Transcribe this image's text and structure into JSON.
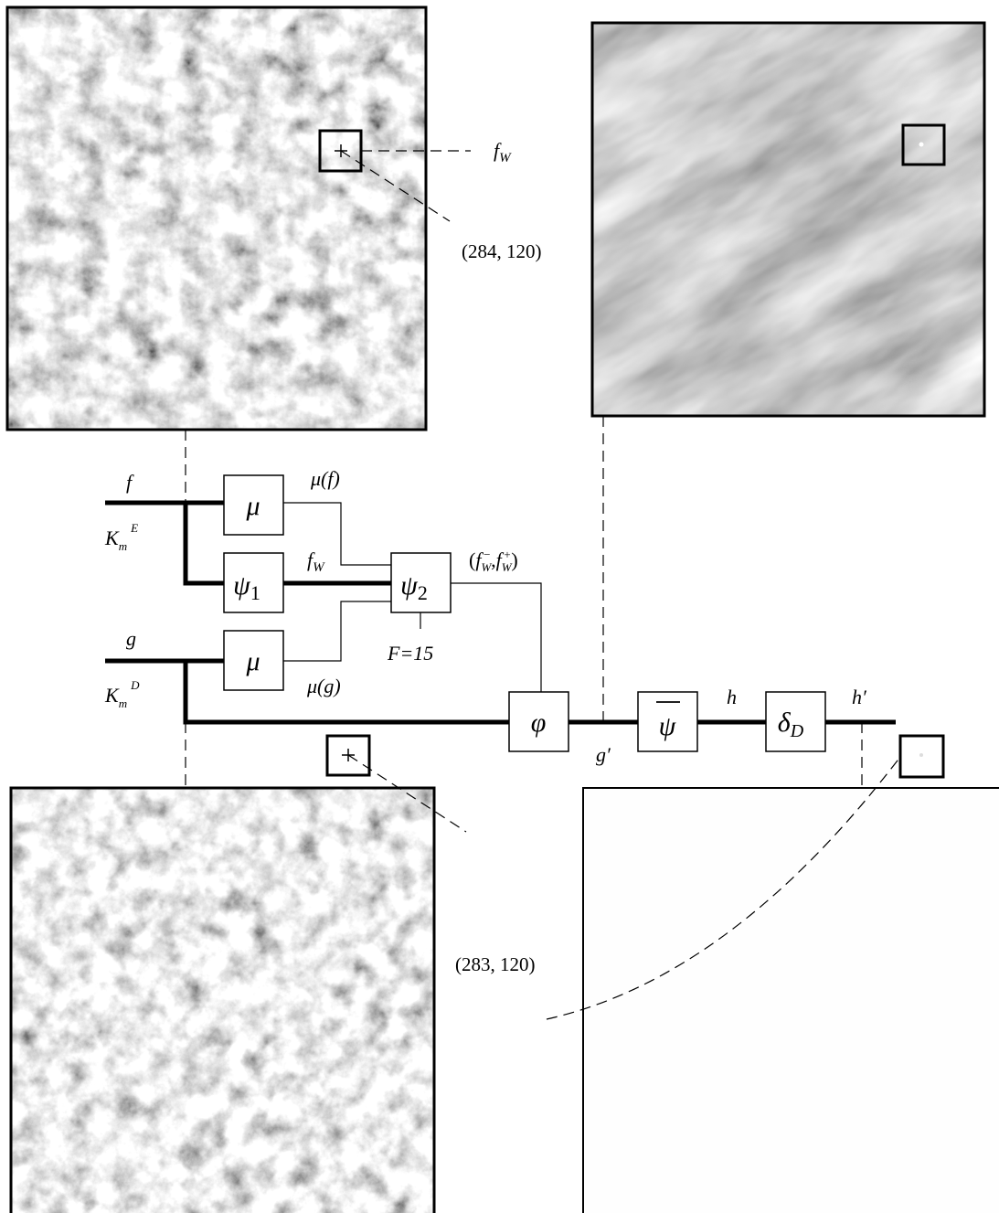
{
  "annotations": {
    "top_window_label": {
      "base": "f",
      "sub": "W"
    },
    "top_coordinates": "(284, 120)",
    "bottom_coordinates": "(283, 120)"
  },
  "inputs": [
    {
      "name": "f",
      "domain": {
        "base": "K",
        "sub": "m",
        "sup": "E"
      }
    },
    {
      "name": "g",
      "domain": {
        "base": "K",
        "sub": "m",
        "sup": "D"
      }
    }
  ],
  "blocks": [
    {
      "label": "μ"
    },
    {
      "label": {
        "base": "ψ",
        "sub": "1"
      }
    },
    {
      "label": {
        "base": "ψ",
        "sub": "2"
      }
    },
    {
      "label": "μ"
    },
    {
      "label": "φ"
    },
    {
      "label": "ψ"
    },
    {
      "label": {
        "base": "δ",
        "sub": "D"
      }
    }
  ],
  "signals": {
    "mu_f": "μ(f)",
    "f_w": {
      "base": "f",
      "sub": "W"
    },
    "range": {
      "open": "(",
      "lower": {
        "base": "f",
        "sub": "W",
        "sup": "−"
      },
      "sep": ",",
      "upper": {
        "base": "f",
        "sub": "W",
        "sup": "+"
      },
      "close": ")"
    },
    "mu_g": "μ(g)",
    "parameter": "F=15",
    "g_prime": "g′",
    "h": "h",
    "h_prime": "h′"
  }
}
